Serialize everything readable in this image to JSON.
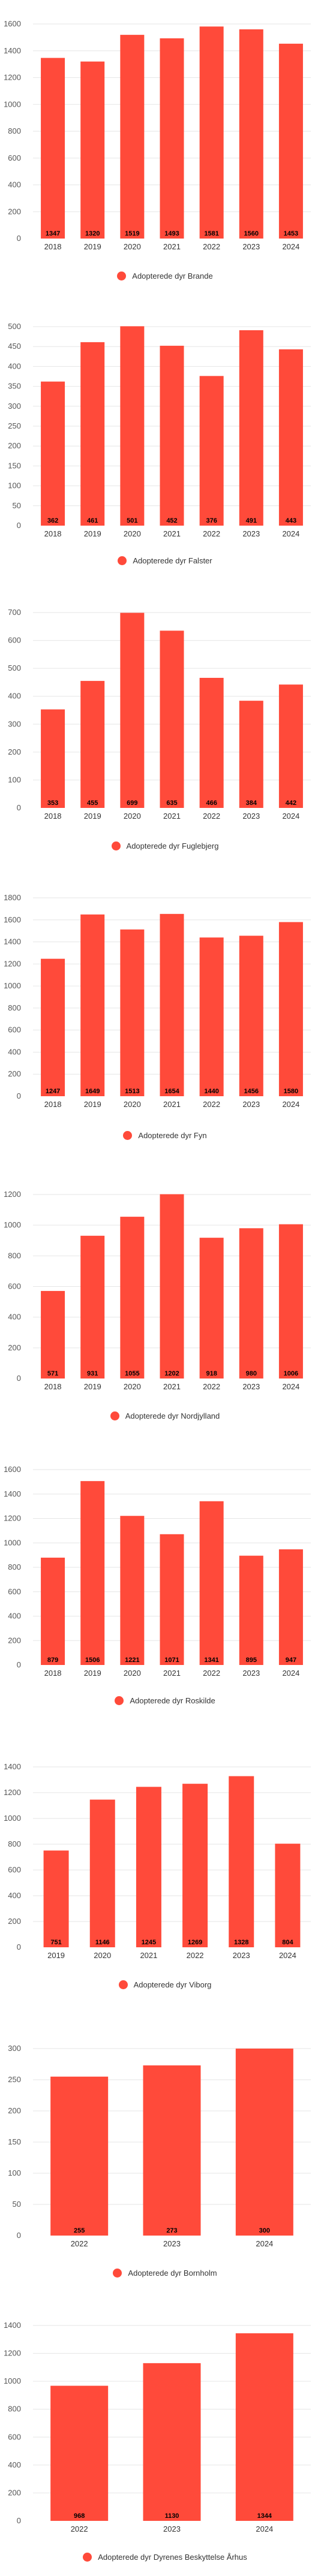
{
  "colors": {
    "bar": "#ff4a3a",
    "grid": "#e6e6e6",
    "label": "#000000"
  },
  "chart_data": [
    {
      "type": "bar",
      "series": [
        {
          "name": "Adopterede dyr Brande",
          "values": [
            1347,
            1320,
            1519,
            1493,
            1581,
            1560,
            1453
          ]
        }
      ],
      "categories": [
        "2018",
        "2019",
        "2020",
        "2021",
        "2022",
        "2023",
        "2024"
      ],
      "y_ticks": [
        0,
        200,
        400,
        600,
        800,
        1000,
        1200,
        1400,
        1600
      ],
      "ylim": [
        0,
        1600
      ],
      "grid": true,
      "legend": "bottom-center"
    },
    {
      "type": "bar",
      "series": [
        {
          "name": "Adopterede dyr Falster",
          "values": [
            362,
            461,
            501,
            452,
            376,
            491,
            443
          ]
        }
      ],
      "categories": [
        "2018",
        "2019",
        "2020",
        "2021",
        "2022",
        "2023",
        "2024"
      ],
      "y_ticks": [
        0,
        50,
        100,
        150,
        200,
        250,
        300,
        350,
        400,
        450,
        500
      ],
      "ylim": [
        0,
        500
      ],
      "grid": true,
      "legend": "bottom-center"
    },
    {
      "type": "bar",
      "series": [
        {
          "name": "Adopterede dyr Fuglebjerg",
          "values": [
            353,
            455,
            699,
            635,
            466,
            384,
            442
          ]
        }
      ],
      "categories": [
        "2018",
        "2019",
        "2020",
        "2021",
        "2022",
        "2023",
        "2024"
      ],
      "y_ticks": [
        0,
        100,
        200,
        300,
        400,
        500,
        600,
        700
      ],
      "ylim": [
        0,
        700
      ],
      "grid": true,
      "legend": "bottom-center"
    },
    {
      "type": "bar",
      "series": [
        {
          "name": "Adopterede dyr Fyn",
          "values": [
            1247,
            1649,
            1513,
            1654,
            1440,
            1456,
            1580
          ]
        }
      ],
      "categories": [
        "2018",
        "2019",
        "2020",
        "2021",
        "2022",
        "2023",
        "2024"
      ],
      "y_ticks": [
        0,
        200,
        400,
        600,
        800,
        1000,
        1200,
        1400,
        1600,
        1800
      ],
      "ylim": [
        0,
        1800
      ],
      "grid": true,
      "legend": "bottom-center"
    },
    {
      "type": "bar",
      "series": [
        {
          "name": "Adopterede dyr Nordjylland",
          "values": [
            571,
            931,
            1055,
            1202,
            918,
            980,
            1006
          ]
        }
      ],
      "categories": [
        "2018",
        "2019",
        "2020",
        "2021",
        "2022",
        "2023",
        "2024"
      ],
      "y_ticks": [
        0,
        200,
        400,
        600,
        800,
        1000,
        1200
      ],
      "ylim": [
        0,
        1200
      ],
      "grid": true,
      "legend": "bottom-center"
    },
    {
      "type": "bar",
      "series": [
        {
          "name": "Adopterede dyr Roskilde",
          "values": [
            879,
            1506,
            1221,
            1071,
            1341,
            895,
            947
          ]
        }
      ],
      "categories": [
        "2018",
        "2019",
        "2020",
        "2021",
        "2022",
        "2023",
        "2024"
      ],
      "y_ticks": [
        0,
        200,
        400,
        600,
        800,
        1000,
        1200,
        1400,
        1600
      ],
      "ylim": [
        0,
        1600
      ],
      "grid": true,
      "legend": "bottom-center"
    },
    {
      "type": "bar",
      "series": [
        {
          "name": "Adopterede dyr Viborg",
          "values": [
            751,
            1146,
            1245,
            1269,
            1328,
            804
          ]
        }
      ],
      "categories": [
        "2019",
        "2020",
        "2021",
        "2022",
        "2023",
        "2024"
      ],
      "y_ticks": [
        0,
        200,
        400,
        600,
        800,
        1000,
        1200,
        1400
      ],
      "ylim": [
        0,
        1400
      ],
      "grid": true,
      "legend": "bottom-center"
    },
    {
      "type": "bar",
      "series": [
        {
          "name": "Adopterede dyr Bornholm",
          "values": [
            255,
            273,
            300
          ]
        }
      ],
      "categories": [
        "2022",
        "2023",
        "2024"
      ],
      "y_ticks": [
        0,
        50,
        100,
        150,
        200,
        250,
        300
      ],
      "ylim": [
        0,
        300
      ],
      "grid": true,
      "legend": "bottom-center"
    },
    {
      "type": "bar",
      "series": [
        {
          "name": "Adopterede dyr Dyrenes Beskyttelse Århus",
          "values": [
            968,
            1130,
            1344
          ]
        }
      ],
      "categories": [
        "2022",
        "2023",
        "2024"
      ],
      "y_ticks": [
        0,
        200,
        400,
        600,
        800,
        1000,
        1200,
        1400
      ],
      "ylim": [
        0,
        1400
      ],
      "grid": true,
      "legend": "bottom-center"
    }
  ]
}
